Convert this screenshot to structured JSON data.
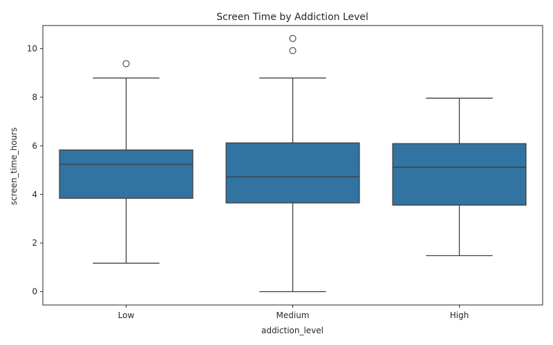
{
  "chart_data": {
    "type": "box",
    "title": "Screen Time by Addiction Level",
    "xlabel": "addiction_level",
    "ylabel": "screen_time_hours",
    "categories": [
      "Low",
      "Medium",
      "High"
    ],
    "ylim": [
      -0.55,
      10.95
    ],
    "yticks": [
      0,
      2,
      4,
      6,
      8,
      10
    ],
    "ytick_labels": [
      "0",
      "2",
      "4",
      "6",
      "8",
      "10"
    ],
    "grid": false,
    "box_color": "#3274a1",
    "line_color": "#3d3d3d",
    "boxes": [
      {
        "category": "Low",
        "whisker_low": 1.17,
        "q1": 3.84,
        "median": 5.24,
        "q3": 5.83,
        "whisker_high": 8.79,
        "outliers": [
          9.38
        ]
      },
      {
        "category": "Medium",
        "whisker_low": 0.0,
        "q1": 3.65,
        "median": 4.72,
        "q3": 6.12,
        "whisker_high": 8.79,
        "outliers": [
          9.92,
          10.42
        ]
      },
      {
        "category": "High",
        "whisker_low": 1.48,
        "q1": 3.56,
        "median": 5.12,
        "q3": 6.09,
        "whisker_high": 7.96,
        "outliers": []
      }
    ]
  }
}
